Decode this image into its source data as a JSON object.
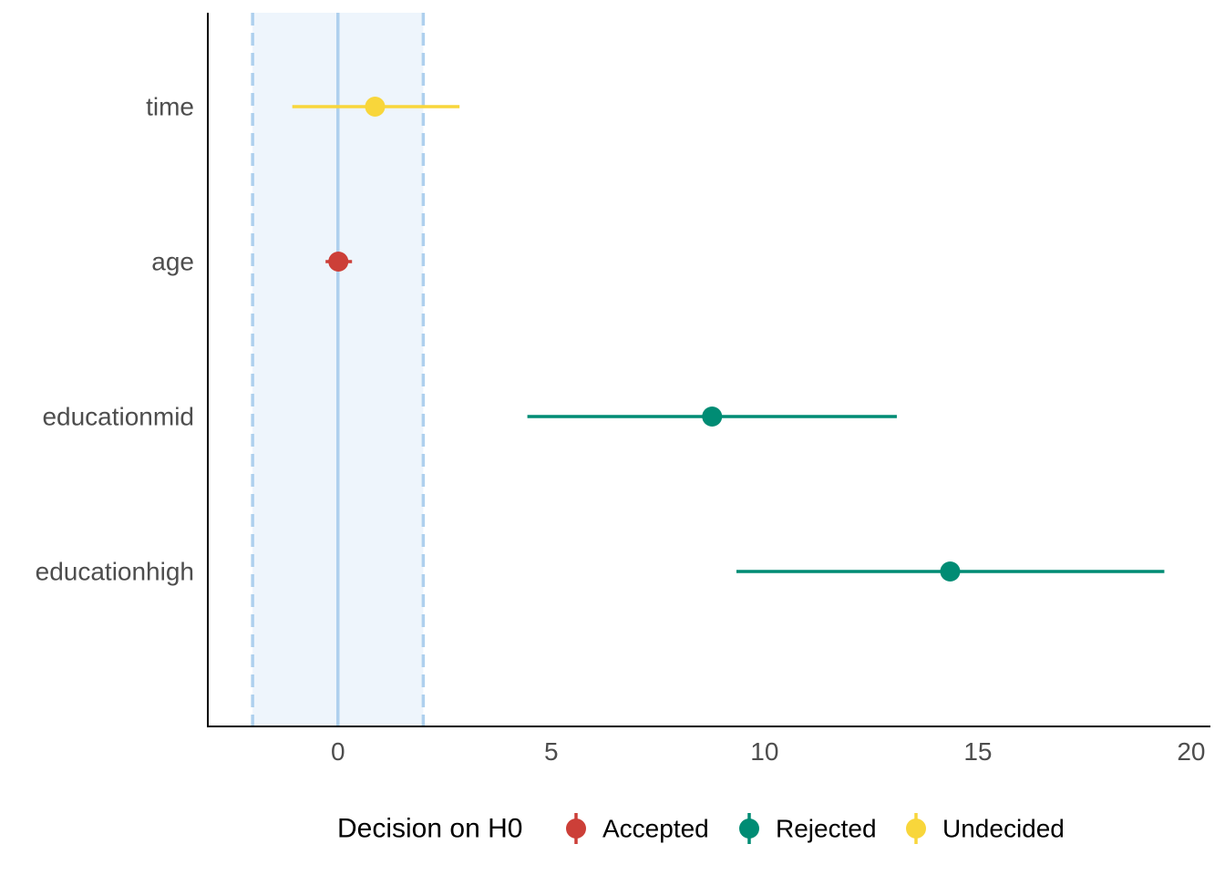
{
  "chart_data": {
    "type": "scatter",
    "subtype": "forest-plot-with-interval",
    "title": "",
    "xlabel": "",
    "ylabel": "",
    "xlim": [
      -3.05,
      20.45
    ],
    "x_ticks": [
      0,
      5,
      10,
      15,
      20
    ],
    "x_tick_labels": [
      "0",
      "5",
      "10",
      "15",
      "20"
    ],
    "categories": [
      "time",
      "age",
      "educationmid",
      "educationhigh"
    ],
    "grid": false,
    "rope": {
      "lower": -2,
      "upper": 2,
      "center": 0,
      "color": "#aed0ee",
      "fill": "#eef5fc"
    },
    "points": [
      {
        "term": "time",
        "estimate": 0.87,
        "low": -1.07,
        "high": 2.85,
        "decision": "Undecided"
      },
      {
        "term": "age",
        "estimate": 0.01,
        "low": -0.29,
        "high": 0.33,
        "decision": "Accepted"
      },
      {
        "term": "educationmid",
        "estimate": 8.77,
        "low": 4.44,
        "high": 13.1,
        "decision": "Rejected"
      },
      {
        "term": "educationhigh",
        "estimate": 14.35,
        "low": 9.34,
        "high": 19.37,
        "decision": "Rejected"
      }
    ],
    "legend": {
      "title": "Decision on H0",
      "position": "bottom",
      "entries": [
        {
          "label": "Accepted",
          "color": "#cc3f38"
        },
        {
          "label": "Rejected",
          "color": "#008c74"
        },
        {
          "label": "Undecided",
          "color": "#f8d63b"
        }
      ]
    }
  }
}
